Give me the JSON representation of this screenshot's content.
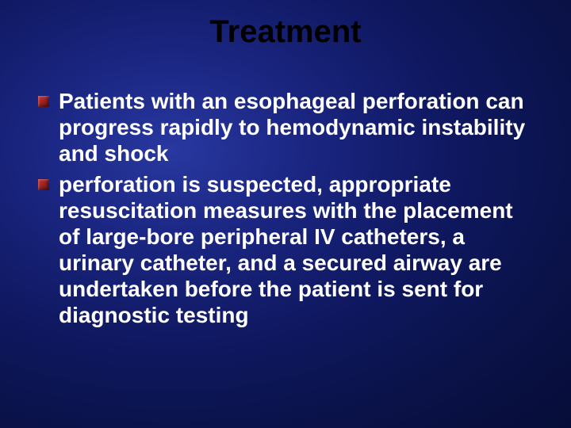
{
  "slide": {
    "title": "Treatment",
    "bullets": [
      "Patients with an esophageal perforation can progress rapidly to hemodynamic instability and shock",
      "perforation is suspected, appropriate resuscitation measures with the placement of large-bore peripheral IV catheters, a urinary catheter, and a secured airway are undertaken before the patient is sent for diagnostic testing"
    ]
  },
  "style": {
    "title_color": "#000000",
    "title_fontsize": 40,
    "body_color": "#ffffff",
    "body_fontsize": 28,
    "bullet_color_start": "#cc3333",
    "bullet_color_end": "#661111",
    "background_gradient_center": "#2838a0",
    "background_gradient_edge": "#060d38"
  }
}
